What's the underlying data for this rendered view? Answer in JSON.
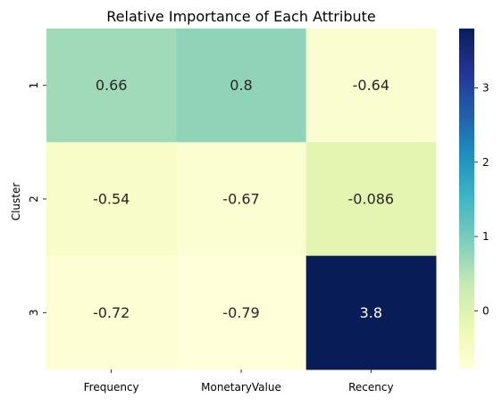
{
  "chart_data": {
    "type": "heatmap",
    "title": "Relative Importance of Each Attribute",
    "xlabel": "",
    "ylabel": "Cluster",
    "columns": [
      "Frequency",
      "MonetaryValue",
      "Recency"
    ],
    "rows": [
      "1",
      "2",
      "3"
    ],
    "values": [
      [
        0.66,
        0.8,
        -0.64
      ],
      [
        -0.54,
        -0.67,
        -0.086
      ],
      [
        -0.72,
        -0.79,
        3.8
      ]
    ],
    "annotations": [
      [
        "0.66",
        "0.8",
        "-0.64"
      ],
      [
        "-0.54",
        "-0.67",
        "-0.086"
      ],
      [
        "-0.72",
        "-0.79",
        "3.8"
      ]
    ],
    "colormap": "YlGnBu",
    "vmin": -0.79,
    "vmax": 3.8,
    "colorbar_ticks": [
      0,
      1,
      2,
      3
    ],
    "colorbar_tick_labels": [
      "0",
      "1",
      "2",
      "3"
    ],
    "grid": false,
    "colorbar_placement": "right"
  }
}
